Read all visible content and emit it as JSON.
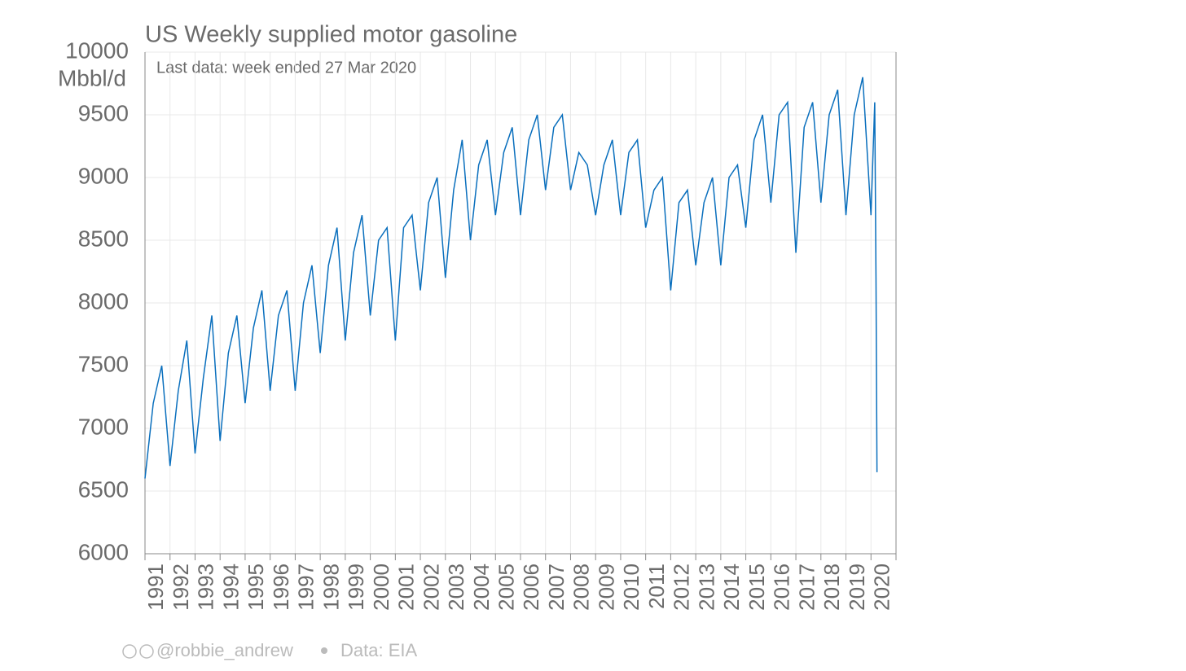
{
  "chart_data": {
    "type": "line",
    "title": "US Weekly supplied motor gasoline",
    "y_label": "Mbbl/d",
    "annotation": "Last data: week ended 27 Mar 2020",
    "credit": "@robbie_andrew",
    "source": "Data: EIA",
    "x": [
      1991.0,
      1991.33,
      1991.67,
      1992.0,
      1992.33,
      1992.67,
      1993.0,
      1993.33,
      1993.67,
      1994.0,
      1994.33,
      1994.67,
      1995.0,
      1995.33,
      1995.67,
      1996.0,
      1996.33,
      1996.67,
      1997.0,
      1997.33,
      1997.67,
      1998.0,
      1998.33,
      1998.67,
      1999.0,
      1999.33,
      1999.67,
      2000.0,
      2000.33,
      2000.67,
      2001.0,
      2001.33,
      2001.67,
      2002.0,
      2002.33,
      2002.67,
      2003.0,
      2003.33,
      2003.67,
      2004.0,
      2004.33,
      2004.67,
      2005.0,
      2005.33,
      2005.67,
      2006.0,
      2006.33,
      2006.67,
      2007.0,
      2007.33,
      2007.67,
      2008.0,
      2008.33,
      2008.67,
      2009.0,
      2009.33,
      2009.67,
      2010.0,
      2010.33,
      2010.67,
      2011.0,
      2011.33,
      2011.67,
      2012.0,
      2012.33,
      2012.67,
      2013.0,
      2013.33,
      2013.67,
      2014.0,
      2014.33,
      2014.67,
      2015.0,
      2015.33,
      2015.67,
      2016.0,
      2016.33,
      2016.67,
      2017.0,
      2017.33,
      2017.67,
      2018.0,
      2018.33,
      2018.67,
      2019.0,
      2019.33,
      2019.67,
      2020.0,
      2020.15,
      2020.2,
      2020.24
    ],
    "series": [
      {
        "name": "Motor gasoline",
        "color": "#0a6fbd",
        "values": [
          6600,
          7200,
          7500,
          6700,
          7300,
          7700,
          6800,
          7400,
          7900,
          6900,
          7600,
          7900,
          7200,
          7800,
          8100,
          7300,
          7900,
          8100,
          7300,
          8000,
          8300,
          7600,
          8300,
          8600,
          7700,
          8400,
          8700,
          7900,
          8500,
          8600,
          7700,
          8600,
          8700,
          8100,
          8800,
          9000,
          8200,
          8900,
          9300,
          8500,
          9100,
          9300,
          8700,
          9200,
          9400,
          8700,
          9300,
          9500,
          8900,
          9400,
          9500,
          8900,
          9200,
          9100,
          8700,
          9100,
          9300,
          8700,
          9200,
          9300,
          8600,
          8900,
          9000,
          8100,
          8800,
          8900,
          8300,
          8800,
          9000,
          8300,
          9000,
          9100,
          8600,
          9300,
          9500,
          8800,
          9500,
          9600,
          8400,
          9400,
          9600,
          8800,
          9500,
          9700,
          8700,
          9500,
          9800,
          8700,
          9600,
          8200,
          6650
        ]
      }
    ],
    "xlim": [
      1991,
      2021
    ],
    "xticks": [
      1991,
      1992,
      1993,
      1994,
      1995,
      1996,
      1997,
      1998,
      1999,
      2000,
      2001,
      2002,
      2003,
      2004,
      2005,
      2006,
      2007,
      2008,
      2009,
      2010,
      2011,
      2012,
      2013,
      2014,
      2015,
      2016,
      2017,
      2018,
      2019,
      2020
    ],
    "ylim": [
      6000,
      10000
    ],
    "yticks": [
      6000,
      6500,
      7000,
      7500,
      8000,
      8500,
      9000,
      9500,
      10000
    ],
    "grid": true
  }
}
